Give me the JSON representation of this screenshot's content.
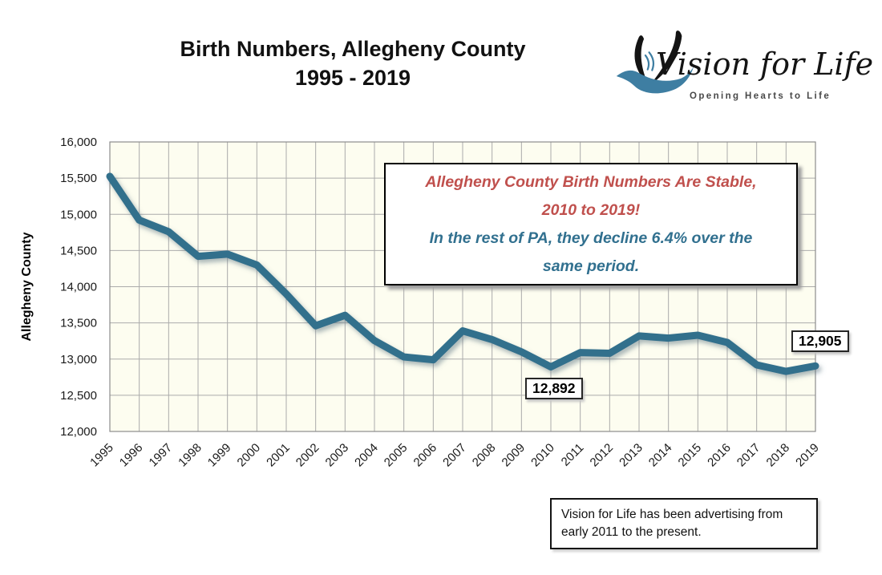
{
  "header": {
    "title_line1": "Birth Numbers, Allegheny County",
    "title_line2": "1995 - 2019"
  },
  "logo": {
    "name": "Vision for Life",
    "tagline": "Opening Hearts to Life",
    "icon": "dove-icon",
    "accent_color": "#3E7EA2",
    "ink_color": "#141414"
  },
  "callout": {
    "red_lines": [
      "Allegheny County Birth Numbers Are Stable,",
      "2010 to 2019!"
    ],
    "blue_lines": [
      "In the rest of PA, they decline 6.4% over the",
      "same period."
    ],
    "red_color": "#C0504D",
    "blue_color": "#31708F"
  },
  "footnote": {
    "lines": [
      "Vision for Life has been advertising from",
      "early 2011 to the present."
    ]
  },
  "chart_data": {
    "type": "line",
    "title": "Birth Numbers, Allegheny County 1995 - 2019",
    "xlabel": "",
    "ylabel": "Allegheny County",
    "categories": [
      "1995",
      "1996",
      "1997",
      "1998",
      "1999",
      "2000",
      "2001",
      "2002",
      "2003",
      "2004",
      "2005",
      "2006",
      "2007",
      "2008",
      "2009",
      "2010",
      "2011",
      "2012",
      "2013",
      "2014",
      "2015",
      "2016",
      "2017",
      "2018",
      "2019"
    ],
    "series": [
      {
        "name": "Allegheny County",
        "values": [
          15525,
          14920,
          14760,
          14420,
          14450,
          14300,
          13900,
          13460,
          13605,
          13255,
          13030,
          12990,
          13390,
          13270,
          13100,
          12892,
          13090,
          13080,
          13320,
          13290,
          13330,
          13230,
          12920,
          12830,
          12905
        ]
      }
    ],
    "ylim": [
      12000,
      16000
    ],
    "ytick_step": 500,
    "grid": true,
    "legend": false,
    "point_labels": [
      {
        "category": "2010",
        "text": "12,892"
      },
      {
        "category": "2019",
        "text": "12,905"
      }
    ],
    "colors": {
      "line": "#336F8C",
      "plot_bg": "#FDFDF0",
      "grid": "#ABABAB",
      "border": "#8C8C8C"
    }
  }
}
